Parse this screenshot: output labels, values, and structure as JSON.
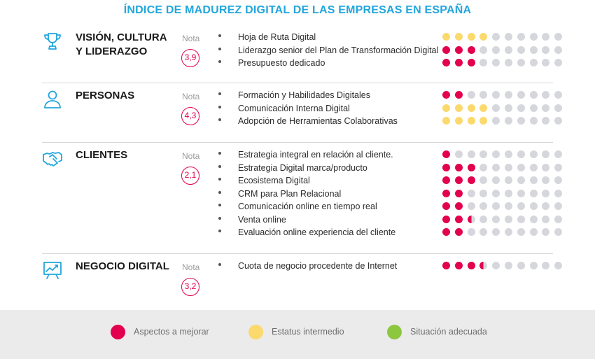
{
  "title": "ÍNDICE DE MADUREZ DIGITAL DE LAS EMPRESAS EN ESPAÑA",
  "colors": {
    "accent": "#22a6dd",
    "improve": "#e2004f",
    "intermediate": "#fbd96c",
    "adequate": "#8dc63f",
    "empty": "#d5d7dc"
  },
  "chart_data": {
    "type": "table",
    "max_dots": 10,
    "sections": [
      {
        "title": "VISIÓN, CULTURA Y LIDERAZGO",
        "icon": "trophy-icon",
        "nota_label": "Nota",
        "nota": "3,9",
        "items": [
          {
            "label": "Hoja de Ruta Digital",
            "value": 4,
            "status": "intermediate"
          },
          {
            "label": "Liderazgo senior del Plan de Transformación Digital",
            "value": 3,
            "status": "improve"
          },
          {
            "label": "Presupuesto dedicado",
            "value": 3,
            "status": "improve"
          }
        ]
      },
      {
        "title": "PERSONAS",
        "icon": "person-icon",
        "nota_label": "Nota",
        "nota": "4,3",
        "items": [
          {
            "label": "Formación y Habilidades Digitales",
            "value": 2,
            "status": "improve"
          },
          {
            "label": "Comunicación Interna Digital",
            "value": 4,
            "status": "intermediate"
          },
          {
            "label": "Adopción de Herramientas Colaborativas",
            "value": 4,
            "status": "intermediate"
          }
        ]
      },
      {
        "title": "CLIENTES",
        "icon": "handshake-icon",
        "nota_label": "Nota",
        "nota": "2,1",
        "items": [
          {
            "label": "Estrategia integral en relación al cliente.",
            "value": 1,
            "status": "improve"
          },
          {
            "label": "Estrategia Digital marca/producto",
            "value": 3,
            "status": "improve"
          },
          {
            "label": "Ecosistema Digital",
            "value": 3,
            "status": "improve"
          },
          {
            "label": "CRM para Plan Relacional",
            "value": 2,
            "status": "improve"
          },
          {
            "label": "Comunicación online en tiempo real",
            "value": 2,
            "status": "improve"
          },
          {
            "label": "Venta online",
            "value": 2.5,
            "status": "improve"
          },
          {
            "label": "Evaluación online experiencia del cliente",
            "value": 2,
            "status": "improve"
          }
        ]
      },
      {
        "title": "NEGOCIO DIGITAL",
        "icon": "chart-board-icon",
        "nota_label": "Nota",
        "nota": "3,2",
        "items": [
          {
            "label": "Cuota de negocio procedente de Internet",
            "value": 3.5,
            "status": "improve"
          }
        ]
      }
    ]
  },
  "legend": [
    {
      "label": "Aspectos a mejorar",
      "status": "improve"
    },
    {
      "label": "Estatus intermedio",
      "status": "intermediate"
    },
    {
      "label": "Situación adecuada",
      "status": "adequate"
    }
  ]
}
